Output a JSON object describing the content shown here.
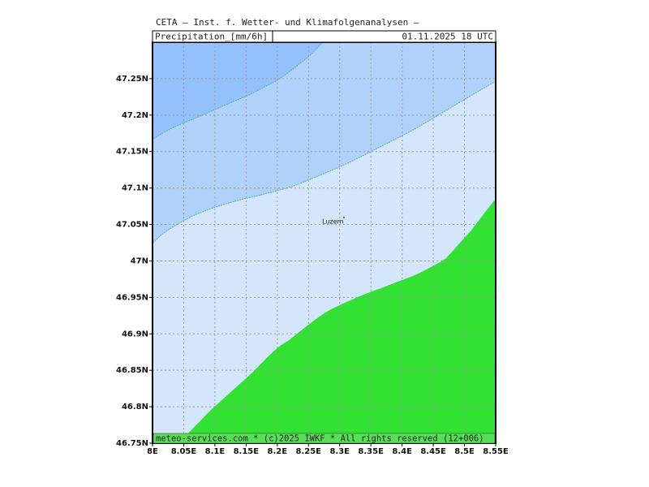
{
  "map": {
    "header": {
      "line1": "CETA — Inst. f. Wetter- und Klimafolgenanalysen —",
      "field": "Precipitation_[mm/6h]",
      "time": "01.11.2025 18 UTC"
    },
    "footer": "meteo-services.com * (c)2025 IWKF * All rights reserved (12+006)",
    "city": "Luzern",
    "xlim": [
      8,
      8.55
    ],
    "ylim": [
      46.75,
      47.3
    ],
    "xticks": [
      {
        "value": 8,
        "label": "8E"
      },
      {
        "value": 8.05,
        "label": "8.05E"
      },
      {
        "value": 8.1,
        "label": "8.1E"
      },
      {
        "value": 8.15,
        "label": "8.15E"
      },
      {
        "value": 8.2,
        "label": "8.2E"
      },
      {
        "value": 8.25,
        "label": "8.25E"
      },
      {
        "value": 8.3,
        "label": "8.3E"
      },
      {
        "value": 8.35,
        "label": "8.35E"
      },
      {
        "value": 8.4,
        "label": "8.4E"
      },
      {
        "value": 8.45,
        "label": "8.45E"
      },
      {
        "value": 8.5,
        "label": "8.5E"
      },
      {
        "value": 8.55,
        "label": "8.55E"
      }
    ],
    "yticks": [
      {
        "value": 46.75,
        "label": "46.75N"
      },
      {
        "value": 46.8,
        "label": "46.8N"
      },
      {
        "value": 46.85,
        "label": "46.85N"
      },
      {
        "value": 46.9,
        "label": "46.9N"
      },
      {
        "value": 46.95,
        "label": "46.95N"
      },
      {
        "value": 47,
        "label": "47N"
      },
      {
        "value": 47.05,
        "label": "47.05N"
      },
      {
        "value": 47.1,
        "label": "47.1N"
      },
      {
        "value": 47.15,
        "label": "47.15N"
      },
      {
        "value": 47.2,
        "label": "47.2N"
      },
      {
        "value": 47.25,
        "label": "47.25N"
      }
    ]
  }
}
